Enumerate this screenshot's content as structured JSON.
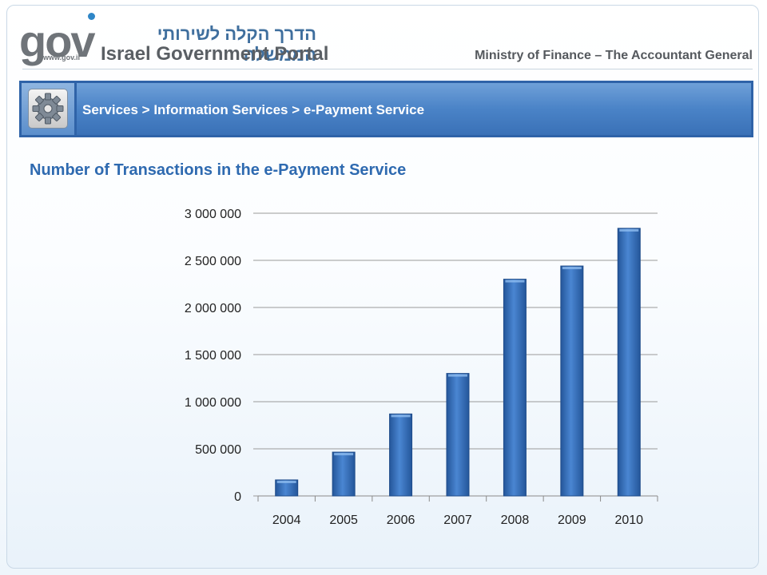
{
  "header": {
    "logo_text": "gov",
    "logo_url": "www.gov.il",
    "hebrew_title": "הדרך הקלה לשירותי הממשלה",
    "portal_title": "Israel Government Portal",
    "ministry": "Ministry of Finance – The Accountant General"
  },
  "breadcrumb": {
    "icon": "gear-icon",
    "text": "Services > Information Services > e-Payment Service"
  },
  "colors": {
    "bar": "#3b76c4",
    "bar_dark": "#24569a",
    "title": "#2e6ab0",
    "breadcrumb_bg": "#4a83c7"
  },
  "chart_data": {
    "type": "bar",
    "title": "Number of Transactions in the e-Payment Service",
    "categories": [
      "2004",
      "2005",
      "2006",
      "2007",
      "2008",
      "2009",
      "2010"
    ],
    "values": [
      170000,
      465000,
      870000,
      1300000,
      2300000,
      2440000,
      2840000
    ],
    "ylim": [
      0,
      3000000
    ],
    "yticks": [
      0,
      500000,
      1000000,
      1500000,
      2000000,
      2500000,
      3000000
    ],
    "ytick_labels": [
      "0",
      "500 000",
      "1 000 000",
      "1 500 000",
      "2 000 000",
      "2 500 000",
      "3 000 000"
    ],
    "xlabel": "",
    "ylabel": "",
    "grid": true,
    "legend": "none"
  }
}
